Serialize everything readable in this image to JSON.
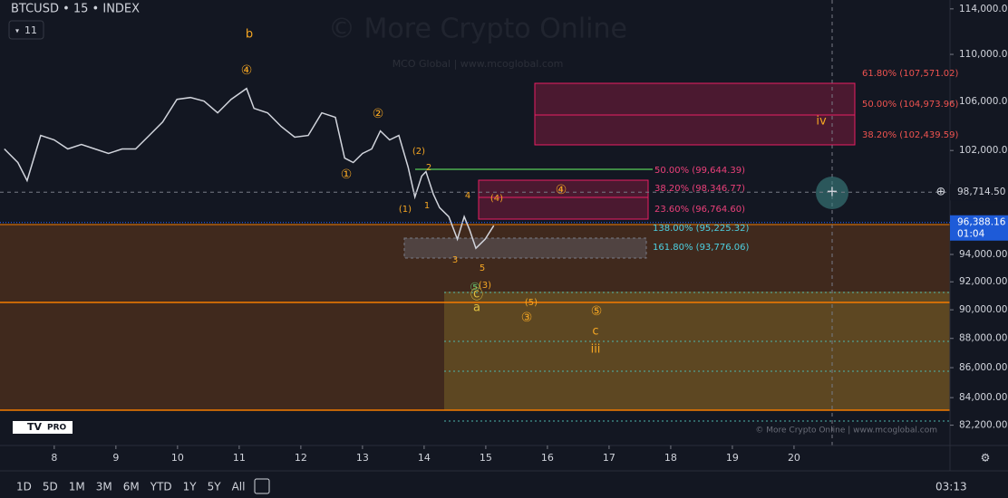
{
  "chart_data": {
    "type": "line",
    "title": "BTCUSD • 15 • INDEX",
    "interval_selector": "11",
    "watermark": "© More Crypto Online",
    "watermark_sub": "MCO Global  |  www.mcoglobal.com",
    "footer_credit": "© More Crypto Online  |  www.mcoglobal.com",
    "logo": "PRO",
    "log_scale": true,
    "xlim": [
      7.12,
      22.53
    ],
    "xticks": [
      8,
      9,
      10,
      11,
      12,
      13,
      14,
      15,
      16,
      17,
      18,
      19,
      20
    ],
    "ylim": [
      80900,
      114800
    ],
    "yticks": [
      {
        "value": 114000,
        "label": "114,000.00"
      },
      {
        "value": 110000,
        "label": "110,000.00"
      },
      {
        "value": 106000,
        "label": "106,000.00"
      },
      {
        "value": 102000,
        "label": "102,000.00"
      },
      {
        "value": 94000,
        "label": "94,000.00"
      },
      {
        "value": 92000,
        "label": "92,000.00"
      },
      {
        "value": 90000,
        "label": "90,000.00"
      },
      {
        "value": 88000,
        "label": "88,000.00"
      },
      {
        "value": 86000,
        "label": "86,000.00"
      },
      {
        "value": 84000,
        "label": "84,000.00"
      },
      {
        "value": 82200,
        "label": "82,200.00"
      }
    ],
    "series": [
      {
        "color": "#d1d4dc",
        "x": [
          7.19,
          7.41,
          7.56,
          7.78,
          8.0,
          8.22,
          8.44,
          8.66,
          8.88,
          9.1,
          9.32,
          9.54,
          9.76,
          9.99,
          10.21,
          10.43,
          10.65,
          10.87,
          11.12,
          11.24,
          11.46,
          11.68,
          11.9,
          12.12,
          12.34,
          12.56,
          12.71,
          12.85,
          13.0,
          13.15,
          13.29,
          13.44,
          13.59,
          13.74,
          13.85,
          13.96,
          14.03,
          14.15,
          14.25,
          14.4,
          14.54,
          14.65,
          14.74,
          14.84,
          14.99,
          15.13
        ],
        "values": [
          102120,
          101040,
          99610,
          103210,
          102850,
          102120,
          102490,
          102120,
          101760,
          102120,
          102120,
          103210,
          104320,
          106180,
          106330,
          106030,
          105060,
          106180,
          107090,
          105430,
          105060,
          103950,
          103070,
          103210,
          105060,
          104690,
          101390,
          101040,
          101760,
          102120,
          103580,
          102850,
          103210,
          100680,
          98340,
          99970,
          100320,
          98550,
          97520,
          96830,
          95130,
          96830,
          95810,
          94460,
          95130,
          96150
        ]
      }
    ],
    "crosshair": {
      "value": 98714.5,
      "label": "98,714.50"
    },
    "last_price": {
      "value": 96388.16,
      "label": "96,388.16",
      "countdown": "01:04"
    },
    "fib_labels": [
      "61.80% (107,571.02)",
      "50.00% (104,973.96)",
      "38.20% (102,439.59)",
      "50.00% (99,644.39)",
      "38.20% (98,346.77)",
      "23.60% (96,764.60)",
      "138.00% (95,225.32)",
      "161.80% (93,776.06)"
    ],
    "wave_labels": [
      "b",
      "④",
      "②",
      "①",
      "(2)",
      "2",
      "(1)",
      "1",
      "4",
      "(4)",
      "④",
      "3",
      "5",
      "(3)",
      "⑤",
      "Ⓒ",
      "a",
      "(5)",
      "③",
      "⑤",
      "c",
      "iii",
      "iv"
    ],
    "range_buttons": [
      "1D",
      "5D",
      "1M",
      "3M",
      "6M",
      "YTD",
      "1Y",
      "5Y",
      "All"
    ],
    "clock": "03:13"
  }
}
